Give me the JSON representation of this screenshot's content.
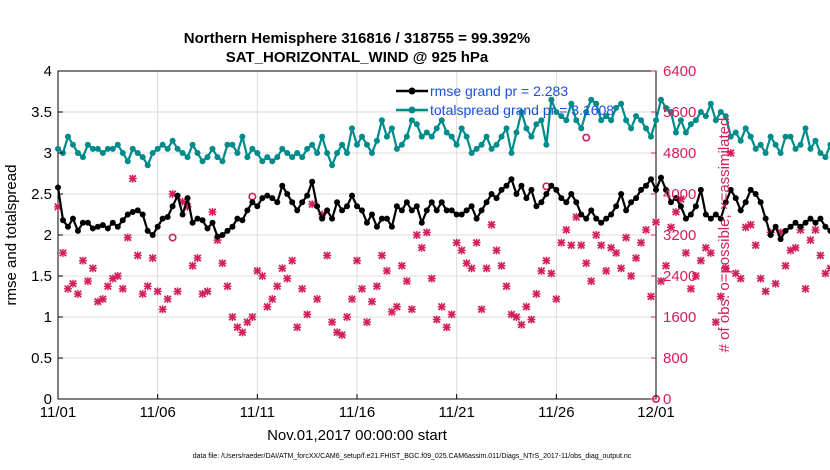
{
  "chart_data": {
    "type": "line",
    "title": "Northern Hemisphere 316816 / 318755 = 99.392%",
    "subtitle": "SAT_HORIZONTAL_WIND @ 925 hPa",
    "xlabel": "Nov.01,2017 00:00:00 start",
    "ylabel_left": "rmse and totalspread",
    "ylabel_right": "# of obs: o=possible; ×=assimilated",
    "footer": "data file: /Users/raeder/DAI/ATM_forcXX/CAM6_setup/f.e21.FHIST_BGC.f09_025.CAM6assim.011/Diags_NTrS_2017-11/obs_diag_output.nc",
    "xlim": [
      0,
      30
    ],
    "x_ticks": [
      {
        "value": 0,
        "label": "11/01"
      },
      {
        "value": 5,
        "label": "11/06"
      },
      {
        "value": 10,
        "label": "11/11"
      },
      {
        "value": 15,
        "label": "11/16"
      },
      {
        "value": 20,
        "label": "11/21"
      },
      {
        "value": 25,
        "label": "11/26"
      },
      {
        "value": 30,
        "label": "12/01"
      }
    ],
    "ylim_left": [
      0,
      4
    ],
    "yticks_left": [
      "0",
      "0.5",
      "1",
      "1.5",
      "2",
      "2.5",
      "3",
      "3.5",
      "4"
    ],
    "ylim_right": [
      0,
      6400
    ],
    "yticks_right": [
      "0",
      "800",
      "1600",
      "2400",
      "3200",
      "4000",
      "4800",
      "5600",
      "6400"
    ],
    "grid": true,
    "legend_position": "top-right",
    "x_step": 0.25,
    "series": [
      {
        "name": "rmse",
        "legend": "rmse grand pr = 2.283",
        "color": "#000000",
        "axis": "left",
        "values": [
          2.58,
          2.18,
          2.1,
          2.2,
          2.05,
          2.15,
          2.15,
          2.08,
          2.1,
          2.12,
          2.08,
          2.15,
          2.1,
          2.18,
          2.25,
          2.28,
          2.3,
          2.25,
          2.05,
          2.0,
          2.1,
          2.2,
          2.22,
          2.35,
          2.48,
          2.25,
          2.45,
          2.15,
          2.2,
          2.18,
          2.08,
          2.15,
          1.98,
          2.0,
          2.05,
          2.1,
          2.2,
          2.18,
          2.3,
          2.4,
          2.35,
          2.45,
          2.48,
          2.45,
          2.4,
          2.6,
          2.5,
          2.4,
          2.3,
          2.4,
          2.48,
          2.65,
          2.35,
          2.2,
          2.3,
          2.2,
          2.4,
          2.3,
          2.35,
          2.48,
          2.35,
          2.3,
          2.15,
          2.25,
          2.1,
          2.2,
          2.2,
          2.1,
          2.35,
          2.3,
          2.4,
          2.3,
          2.35,
          2.15,
          2.3,
          2.4,
          2.3,
          2.4,
          2.3,
          2.3,
          2.25,
          2.25,
          2.3,
          2.35,
          2.2,
          2.3,
          2.4,
          2.5,
          2.45,
          2.55,
          2.6,
          2.68,
          2.5,
          2.6,
          2.45,
          2.55,
          2.35,
          2.4,
          2.5,
          2.6,
          2.55,
          2.45,
          2.4,
          2.5,
          2.4,
          2.25,
          2.2,
          2.3,
          2.2,
          2.15,
          2.2,
          2.25,
          2.35,
          2.5,
          2.3,
          2.4,
          2.45,
          2.55,
          2.6,
          2.68,
          2.55,
          2.7,
          2.55,
          2.4,
          2.45,
          2.35,
          2.2,
          2.25,
          2.35,
          2.55,
          2.25,
          2.2,
          2.25,
          2.2,
          2.4,
          2.55,
          2.45,
          2.3,
          2.4,
          2.55,
          2.5,
          2.4,
          2.2,
          2.0,
          2.1,
          1.95,
          2.05,
          2.1,
          2.15,
          2.1,
          2.15,
          2.2,
          2.15,
          2.2,
          2.1,
          2.05,
          2.05,
          2.08
        ]
      },
      {
        "name": "totalspread",
        "legend": "totalspread grand pr = 3.1608",
        "color": "#008b8b",
        "axis": "left",
        "values": [
          3.05,
          3.0,
          3.2,
          3.1,
          3.0,
          2.95,
          3.1,
          3.05,
          3.05,
          3.0,
          3.05,
          3.05,
          3.1,
          3.0,
          2.9,
          3.05,
          3.0,
          2.95,
          2.85,
          3.0,
          3.05,
          3.1,
          3.05,
          3.15,
          3.05,
          3.0,
          2.95,
          3.1,
          3.0,
          2.9,
          2.95,
          3.05,
          2.95,
          2.9,
          3.1,
          3.1,
          3.0,
          3.2,
          2.95,
          3.05,
          3.0,
          2.9,
          2.95,
          2.9,
          2.95,
          3.05,
          3.0,
          2.95,
          3.0,
          2.95,
          3.05,
          3.1,
          3.0,
          3.2,
          3.0,
          2.85,
          3.0,
          3.1,
          3.0,
          3.3,
          3.1,
          3.2,
          3.1,
          3.0,
          3.15,
          3.4,
          3.2,
          3.3,
          3.05,
          3.1,
          3.2,
          3.4,
          3.35,
          3.2,
          3.25,
          3.2,
          3.3,
          3.4,
          3.25,
          3.2,
          3.1,
          3.3,
          3.2,
          3.0,
          3.05,
          3.1,
          3.2,
          3.05,
          3.1,
          3.2,
          3.3,
          3.0,
          3.25,
          3.5,
          3.3,
          3.2,
          3.35,
          3.4,
          3.1,
          3.65,
          3.5,
          3.45,
          3.4,
          3.6,
          3.4,
          3.3,
          3.5,
          3.65,
          3.6,
          3.4,
          3.45,
          3.4,
          3.55,
          3.6,
          3.4,
          3.3,
          3.45,
          3.4,
          3.3,
          3.2,
          3.4,
          3.65,
          3.55,
          3.5,
          3.25,
          3.4,
          3.25,
          3.35,
          3.4,
          3.5,
          3.45,
          3.6,
          3.4,
          3.5,
          3.45,
          3.2,
          3.25,
          3.15,
          3.3,
          3.2,
          3.05,
          3.1,
          3.0,
          3.2,
          3.1,
          3.0,
          3.2,
          3.2,
          3.05,
          3.1,
          3.3,
          3.05,
          3.15,
          3.0,
          2.95,
          3.1,
          3.0,
          3.0,
          3.15,
          3.0,
          3.2,
          3.1
        ]
      },
      {
        "name": "observations assimilated",
        "color": "#d41e5a",
        "axis": "right",
        "values": [
          3750,
          2850,
          2150,
          2250,
          2050,
          2700,
          2300,
          2550,
          1900,
          1950,
          2200,
          2350,
          2400,
          2150,
          3150,
          4300,
          2800,
          2050,
          2200,
          2750,
          2100,
          1750,
          1950,
          4000,
          2100,
          3850,
          3750,
          2600,
          2750,
          2050,
          2100,
          3650,
          3100,
          2650,
          2200,
          1600,
          1400,
          1300,
          1500,
          1600,
          2500,
          2400,
          1800,
          1950,
          2200,
          2550,
          2350,
          2700,
          1400,
          2150,
          1650,
          3800,
          1950,
          3600,
          2800,
          1500,
          1300,
          1250,
          1600,
          1950,
          2700,
          2150,
          1500,
          1900,
          2200,
          2800,
          2500,
          1700,
          1800,
          2600,
          2300,
          1750,
          3200,
          2950,
          3250,
          2350,
          1550,
          1800,
          1400,
          1650,
          3050,
          2900,
          2650,
          2550,
          3050,
          1750,
          2550,
          3400,
          2900,
          2600,
          2200,
          1650,
          1600,
          1450,
          1800,
          1550,
          2050,
          2500,
          2700,
          2450,
          1950,
          3050,
          3300,
          3000,
          3550,
          3000,
          2650,
          2300,
          3200,
          3000,
          2500,
          2950,
          2850,
          2550,
          3150,
          2400,
          2750,
          3050,
          3300,
          2000,
          3450,
          2300,
          2600,
          3350,
          3650,
          3900,
          2850,
          2150,
          2400,
          2700,
          2950,
          2850,
          1500,
          2000,
          2550,
          4800,
          2450,
          2350,
          3350,
          3400,
          3000,
          2350,
          2100,
          3250,
          2250,
          3250,
          2600,
          2900,
          2950,
          3300,
          2150,
          3100,
          3300,
          2800,
          2450,
          2550,
          3350,
          3650,
          2800,
          4000,
          3800,
          2700
        ]
      }
    ],
    "possible_annotations": [
      {
        "x": 9.75,
        "value": 3950
      },
      {
        "x": 5.75,
        "value": 3150
      },
      {
        "x": 26.5,
        "value": 5100
      },
      {
        "x": 24.5,
        "value": 4150
      },
      {
        "x": 30.0,
        "value": 0
      }
    ]
  }
}
